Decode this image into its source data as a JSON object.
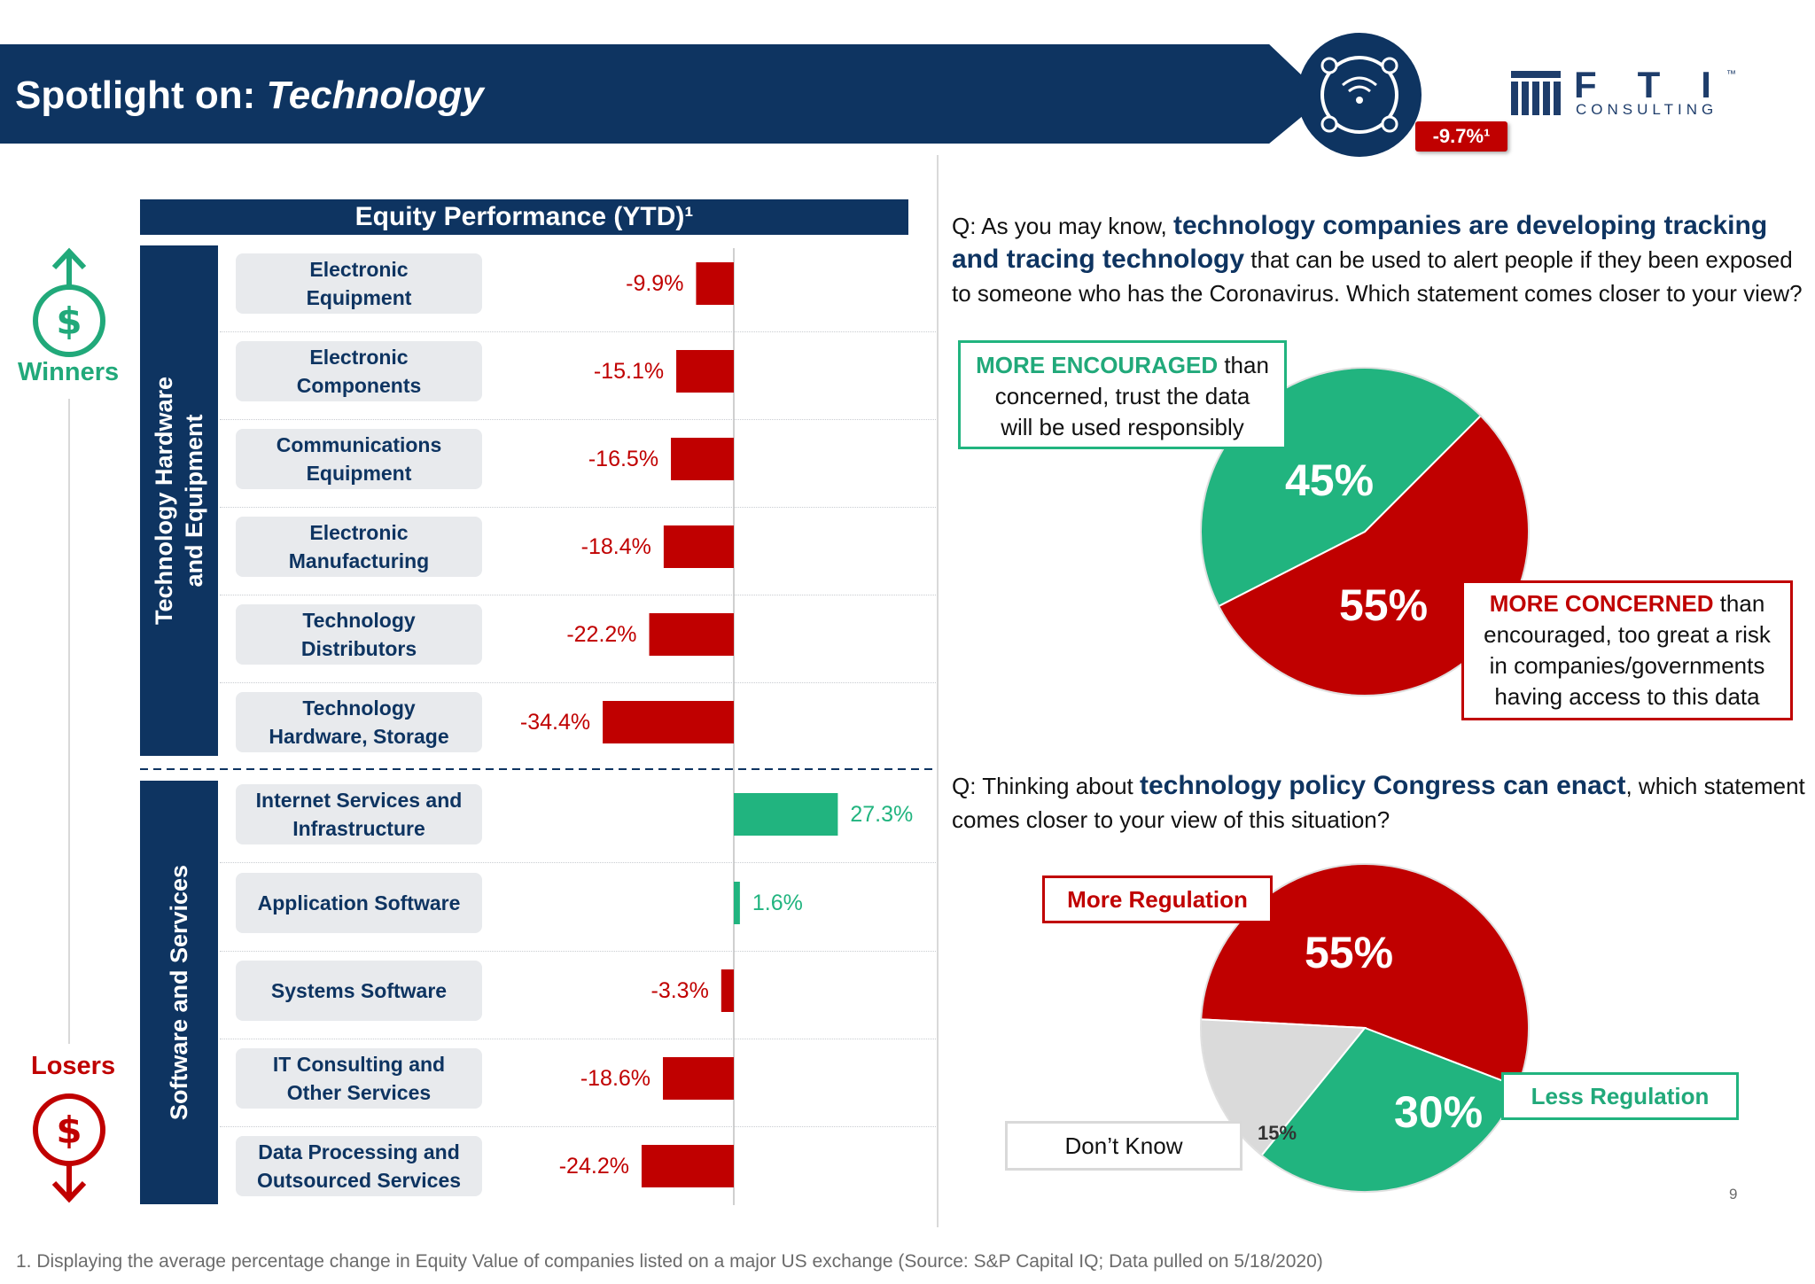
{
  "header": {
    "title_prefix": "Spotlight on: ",
    "title_sector": "Technology",
    "sector_badge": "-9.7%¹",
    "logo_letters": "FTI",
    "logo_sub": "CONSULTING",
    "logo_tm": "™",
    "icon": "wifi-tracking-icon"
  },
  "legend": {
    "winners": "Winners",
    "losers": "Losers",
    "winners_icon": "dollar-up-icon",
    "losers_icon": "dollar-down-icon"
  },
  "groups": {
    "hardware": "Technology Hardware and Equipment",
    "hardware_line1": "Technology Hardware",
    "hardware_line2": "and Equipment",
    "software": "Software and Services"
  },
  "chart_data": [
    {
      "type": "bar",
      "orientation": "horizontal",
      "title": "Equity Performance (YTD)¹",
      "unit": "%",
      "categories": [
        "Electronic Equipment",
        "Electronic Components",
        "Communications Equipment",
        "Electronic Manufacturing",
        "Technology Distributors",
        "Technology Hardware, Storage",
        "Internet Services and Infrastructure",
        "Application Software",
        "Systems Software",
        "IT Consulting and Other Services",
        "Data Processing and Outsourced Services"
      ],
      "category_lines": [
        [
          "Electronic",
          "Equipment"
        ],
        [
          "Electronic",
          "Components"
        ],
        [
          "Communications",
          "Equipment"
        ],
        [
          "Electronic",
          "Manufacturing"
        ],
        [
          "Technology",
          "Distributors"
        ],
        [
          "Technology",
          "Hardware, Storage"
        ],
        [
          "Internet Services and",
          "Infrastructure"
        ],
        [
          "Application Software"
        ],
        [
          "Systems Software"
        ],
        [
          "IT Consulting and",
          "Other Services"
        ],
        [
          "Data Processing and",
          "Outsourced Services"
        ]
      ],
      "values": [
        -9.9,
        -15.1,
        -16.5,
        -18.4,
        -22.2,
        -34.4,
        27.3,
        1.6,
        -3.3,
        -18.6,
        -24.2
      ],
      "labels": [
        "-9.9%",
        "-15.1%",
        "-16.5%",
        "-18.4%",
        "-22.2%",
        "-34.4%",
        "27.3%",
        "1.6%",
        "-3.3%",
        "-18.6%",
        "-24.2%"
      ],
      "groups": [
        {
          "name": "Technology Hardware and Equipment",
          "count": 6
        },
        {
          "name": "Software and Services",
          "count": 5
        }
      ],
      "colors": {
        "positive": "#21b47f",
        "negative": "#c00000"
      },
      "grid": false
    },
    {
      "type": "pie",
      "question_parts": [
        {
          "text": "Q: As you may know, ",
          "bold": false
        },
        {
          "text": "technology companies are developing tracking and tracing technology",
          "bold": true
        },
        {
          "text": " that can be used to alert people if they been exposed to someone who has the Coronavirus. Which statement comes closer to your view?",
          "bold": false
        }
      ],
      "slices": [
        {
          "label": "MORE ENCOURAGED than concerned, trust the data will be used responsibly",
          "value": 45,
          "text": "45%",
          "color": "#21b47f"
        },
        {
          "label": "MORE CONCERNED than encouraged, too great a risk in companies/governments having access to this data",
          "value": 55,
          "text": "55%",
          "color": "#c00000"
        }
      ]
    },
    {
      "type": "pie",
      "question_parts": [
        {
          "text": "Q: Thinking about ",
          "bold": false
        },
        {
          "text": "technology policy Congress can enact",
          "bold": true
        },
        {
          "text": ", which statement comes closer to your view of this situation?",
          "bold": false
        }
      ],
      "slices": [
        {
          "label": "More Regulation",
          "value": 55,
          "text": "55%",
          "color": "#c00000"
        },
        {
          "label": "Less Regulation",
          "value": 30,
          "text": "30%",
          "color": "#21b47f"
        },
        {
          "label": "Don’t Know",
          "value": 15,
          "text": "15%",
          "color": "#dadada"
        }
      ]
    }
  ],
  "callouts": {
    "encouraged_bold": "MORE ENCOURAGED",
    "encouraged_rest_1": " than",
    "encouraged_line2": "concerned, trust the data",
    "encouraged_line3": "will be used responsibly",
    "concerned_bold": "MORE CONCERNED",
    "concerned_rest_1": " than",
    "concerned_line2": "encouraged, too great a risk",
    "concerned_line3": "in companies/governments",
    "concerned_line4": "having access to this data",
    "more_regulation": "More Regulation",
    "less_regulation": "Less Regulation",
    "dont_know": "Don’t Know"
  },
  "footnote": "1.    Displaying the average percentage change in Equity Value of companies listed on a major US exchange (Source: S&P Capital IQ; Data pulled on 5/18/2020)",
  "page_number": "9"
}
